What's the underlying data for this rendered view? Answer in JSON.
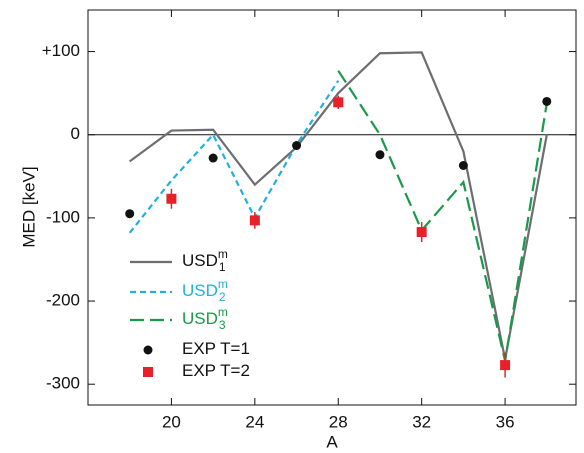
{
  "chart_data": {
    "type": "line",
    "x_label": "A",
    "y_label": "MED [keV]",
    "x": [
      18,
      20,
      22,
      24,
      26,
      28,
      30,
      32,
      34,
      36,
      38
    ],
    "xlim": [
      16,
      39.4
    ],
    "ylim": [
      -325,
      150
    ],
    "xticks": [
      20,
      24,
      28,
      32,
      36
    ],
    "yticks": [
      {
        "value": 100,
        "label": "+100"
      },
      0,
      -100,
      -200,
      -300
    ],
    "series": [
      {
        "name": "USD",
        "sub": "1",
        "sup": "m",
        "color": "#6d6e71",
        "dash": "solid",
        "values": [
          -32,
          5,
          6,
          -60,
          -15,
          50,
          98,
          99,
          -20,
          -270,
          0
        ]
      },
      {
        "name": "USD",
        "sub": "2",
        "sup": "m",
        "color": "#1fb0e0",
        "dash": "short",
        "values": [
          -118,
          -55,
          0,
          -100,
          -12,
          65,
          null,
          null,
          null,
          null,
          null
        ]
      },
      {
        "name": "USD",
        "sub": "3",
        "sup": "m",
        "color": "#1a9a48",
        "dash": "long",
        "values": [
          null,
          null,
          null,
          null,
          null,
          77,
          0,
          -115,
          -57,
          -272,
          38
        ]
      },
      {
        "name": "EXP T=1",
        "color": "#111111",
        "marker": "circle",
        "values": [
          -95,
          null,
          -28,
          null,
          -13,
          null,
          -24,
          null,
          -37,
          null,
          40
        ]
      },
      {
        "name": "EXP T=2",
        "color": "#e8202a",
        "marker": "square",
        "values": [
          null,
          -77,
          null,
          -103,
          null,
          39,
          null,
          -117,
          null,
          -277,
          null
        ],
        "errors": [
          null,
          12,
          null,
          10,
          null,
          8,
          null,
          12,
          null,
          15,
          null
        ]
      }
    ]
  }
}
